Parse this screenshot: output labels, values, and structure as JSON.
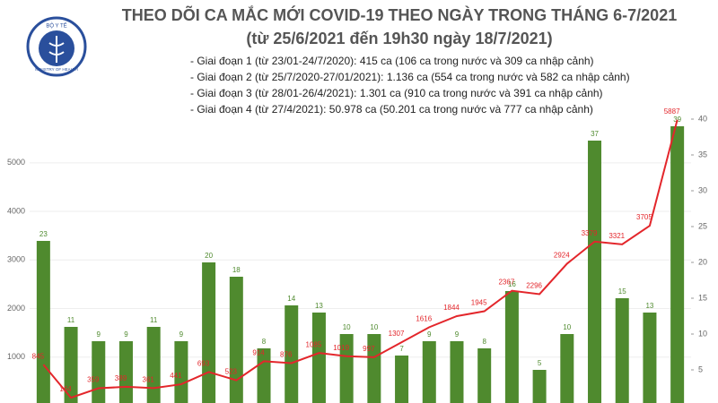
{
  "logo": {
    "top": "BỘ Y TẾ",
    "bottom": "MINISTRY OF HEALTH"
  },
  "chart_data": {
    "type": "bar",
    "title": "THEO DÕI CA MẮC MỚI COVID-19 THEO NGÀY TRONG THÁNG 6-7/2021",
    "subtitle": "(từ 25/6/2021 đến 19h30 ngày 18/7/2021)",
    "annotations": [
      "- Giai đoạn 1 (từ 23/01-24/7/2020): 415 ca (106 ca trong nước và 309 ca nhập cảnh)",
      "- Giai đoạn 2 (từ 25/7/2020-27/01/2021): 1.136 ca (554 ca trong nước và 582 ca nhập cảnh)",
      "- Giai đoạn 3 (từ 28/01-26/4/2021): 1.301 ca (910 ca trong nước và 391 ca nhập cảnh)",
      "- Giai đoạn 4 (từ 27/4/2021): 50.978 ca (50.201 ca trong nước và 777 ca nhập cảnh)"
    ],
    "categories": [
      null,
      null,
      null,
      null,
      null,
      null,
      null,
      null,
      null,
      null,
      null,
      null,
      null,
      null,
      null,
      null,
      null,
      null,
      null,
      null,
      null,
      null,
      null,
      null
    ],
    "series": [
      {
        "type": "bar",
        "axis": "y2",
        "color": "#4f8a2e",
        "values": [
          23,
          11,
          9,
          9,
          11,
          9,
          20,
          18,
          8,
          14,
          13,
          10,
          10,
          7,
          9,
          9,
          8,
          16,
          5,
          10,
          37,
          15,
          13,
          39
        ]
      },
      {
        "type": "line",
        "color": "#e3262b",
        "values": [
          845,
          164,
          359,
          389,
          361,
          441,
          693,
          523,
          914,
          876,
          1085,
          1019,
          997,
          1307,
          1616,
          1844,
          1945,
          2367,
          2296,
          2924,
          3379,
          3321,
          3705,
          5887
        ]
      }
    ],
    "ylim": [
      0,
      5900
    ],
    "yticks": [
      1000,
      2000,
      3000,
      4000,
      5000
    ],
    "y2lim": [
      0,
      40
    ],
    "y2ticks": [
      5,
      10,
      15,
      20,
      25,
      30,
      35,
      40
    ]
  }
}
